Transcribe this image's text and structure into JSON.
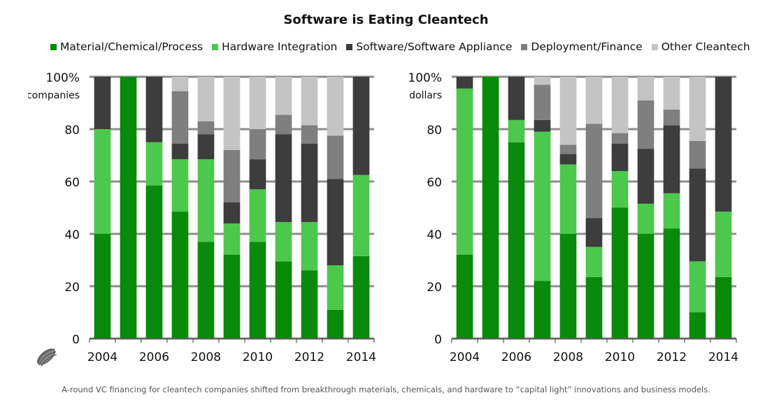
{
  "title": "Software is Eating Cleantech",
  "caption": "A-round VC financing for cleantech companies shifted from breakthrough materials, chemicals, and hardware to “capital light” innovations and business models.",
  "colors": {
    "material": "#0a8a0a",
    "hardware": "#4cc84c",
    "software": "#3d3d3d",
    "deployment": "#7f7f7f",
    "other": "#c4c4c4",
    "gridline": "#8c8c8c"
  },
  "legend": [
    {
      "label": "Material/Chemical/Process",
      "color": "#0a8a0a"
    },
    {
      "label": "Hardware Integration",
      "color": "#4cc84c"
    },
    {
      "label": "Software/Software Appliance",
      "color": "#3d3d3d"
    },
    {
      "label": "Deployment/Finance",
      "color": "#7f7f7f"
    },
    {
      "label": "Other Cleantech",
      "color": "#c4c4c4"
    }
  ],
  "chart_data": [
    {
      "type": "bar",
      "stacked": true,
      "ylabel": "companies",
      "ylim": [
        0,
        100
      ],
      "yticks": [
        "0",
        "20",
        "40",
        "60",
        "80",
        "100%"
      ],
      "categories": [
        "2004",
        "2005",
        "2006",
        "2007",
        "2008",
        "2009",
        "2010",
        "2011",
        "2012",
        "2013",
        "2014"
      ],
      "xtick_labels": [
        "2004",
        "2006",
        "2008",
        "2010",
        "2012",
        "2014"
      ],
      "series": [
        {
          "name": "Material/Chemical/Process",
          "color": "#0a8a0a",
          "values": [
            40,
            100,
            58.5,
            48.5,
            37,
            32,
            37,
            29.5,
            26,
            11,
            31.5
          ]
        },
        {
          "name": "Hardware Integration",
          "color": "#4cc84c",
          "values": [
            40,
            0,
            16.5,
            20,
            31.5,
            12,
            20,
            15,
            18.5,
            17,
            31
          ]
        },
        {
          "name": "Software/Software Appliance",
          "color": "#3d3d3d",
          "values": [
            20,
            0,
            25,
            6,
            9.5,
            8,
            11.5,
            33.5,
            30,
            33,
            37.5
          ]
        },
        {
          "name": "Deployment/Finance",
          "color": "#7f7f7f",
          "values": [
            0,
            0,
            0,
            20,
            5,
            20,
            11.5,
            7.5,
            7,
            16.5,
            0
          ]
        },
        {
          "name": "Other Cleantech",
          "color": "#c4c4c4",
          "values": [
            0,
            0,
            0,
            5.5,
            17,
            28,
            20,
            14.5,
            18.5,
            22.5,
            0
          ]
        }
      ]
    },
    {
      "type": "bar",
      "stacked": true,
      "ylabel": "dollars",
      "ylim": [
        0,
        100
      ],
      "yticks": [
        "0",
        "20",
        "40",
        "60",
        "80",
        "100%"
      ],
      "categories": [
        "2004",
        "2005",
        "2006",
        "2007",
        "2008",
        "2009",
        "2010",
        "2011",
        "2012",
        "2013",
        "2014"
      ],
      "xtick_labels": [
        "2004",
        "2006",
        "2008",
        "2010",
        "2012",
        "2014"
      ],
      "series": [
        {
          "name": "Material/Chemical/Process",
          "color": "#0a8a0a",
          "values": [
            32,
            100,
            75,
            22,
            40,
            23.5,
            50,
            40,
            42,
            10,
            23.5
          ]
        },
        {
          "name": "Hardware Integration",
          "color": "#4cc84c",
          "values": [
            63.5,
            0,
            8.5,
            57,
            26.5,
            11.5,
            14,
            11.5,
            13.5,
            19.5,
            25
          ]
        },
        {
          "name": "Software/Software Appliance",
          "color": "#3d3d3d",
          "values": [
            4.5,
            0,
            16.5,
            4.5,
            4,
            11,
            10.5,
            21,
            26,
            35.5,
            51.5
          ]
        },
        {
          "name": "Deployment/Finance",
          "color": "#7f7f7f",
          "values": [
            0,
            0,
            0,
            13.5,
            3.5,
            36,
            4,
            18.5,
            6,
            10.5,
            0
          ]
        },
        {
          "name": "Other Cleantech",
          "color": "#c4c4c4",
          "values": [
            0,
            0,
            0,
            3,
            26,
            18,
            21.5,
            9,
            12.5,
            24.5,
            0
          ]
        }
      ]
    }
  ]
}
